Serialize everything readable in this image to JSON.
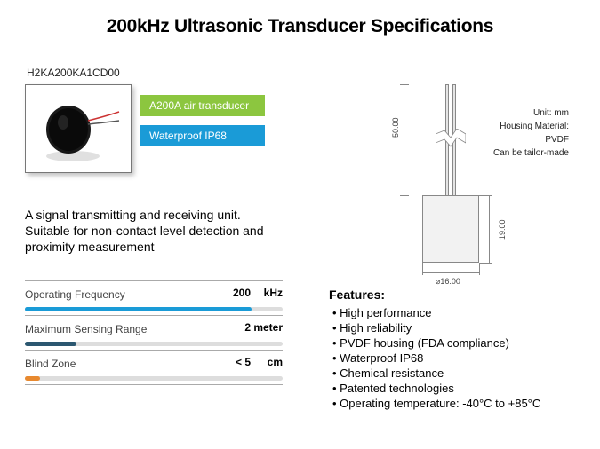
{
  "title": "200kHz Ultrasonic Transducer Specifications",
  "model": "H2KA200KA1CD00",
  "badges": [
    {
      "text": "A200A air transducer",
      "color": "#8cc63f"
    },
    {
      "text": "Waterproof IP68",
      "color": "#1a9bd7"
    }
  ],
  "description": "A signal transmitting and receiving unit. Suitable for non-contact level detection and proximity measurement",
  "specs": [
    {
      "label": "Operating Frequency",
      "value": "200",
      "unit": "kHz",
      "bar_pct": 88,
      "bar_color": "#1a9bd7"
    },
    {
      "label": "Maximum Sensing Range",
      "value": "2",
      "unit": "meter",
      "bar_pct": 20,
      "bar_color": "#2b5770"
    },
    {
      "label": "Blind Zone",
      "value": "< 5",
      "unit": "cm",
      "bar_pct": 6,
      "bar_color": "#e8892f"
    }
  ],
  "drawing": {
    "h_wire": "50.00",
    "h_body": "19.00",
    "diameter": "⌀16.00",
    "notes": [
      "Unit: mm",
      "Housing Material:",
      "PVDF",
      "Can be tailor-made"
    ]
  },
  "features": {
    "title": "Features:",
    "items": [
      "High performance",
      "High reliability",
      "PVDF housing (FDA compliance)",
      "Waterproof IP68",
      "Chemical resistance",
      "Patented technologies",
      "Operating temperature: -40°C to +85°C"
    ]
  }
}
